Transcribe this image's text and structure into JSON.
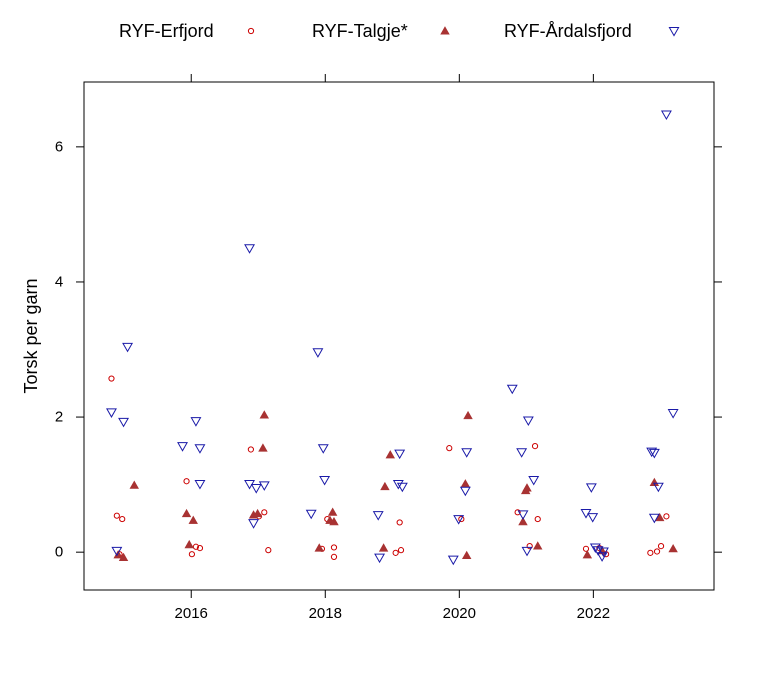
{
  "chart_data": {
    "type": "scatter",
    "title": "",
    "xlabel": "",
    "ylabel": "Torsk per garn",
    "xlim": [
      2014.4,
      2023.8
    ],
    "ylim": [
      -0.56,
      6.96
    ],
    "x_ticks": [
      2016,
      2018,
      2020,
      2022
    ],
    "y_ticks": [
      0,
      2,
      4,
      6
    ],
    "grid": false,
    "legend_position": "top",
    "series": [
      {
        "name": "RYF-Erfjord",
        "marker": "open-circle",
        "color": "#cc0000",
        "points": [
          {
            "x": 2014.81,
            "y": 2.57
          },
          {
            "x": 2014.89,
            "y": 0.54
          },
          {
            "x": 2014.97,
            "y": 0.49
          },
          {
            "x": 2014.93,
            "y": -0.03
          },
          {
            "x": 2015.93,
            "y": 1.05
          },
          {
            "x": 2016.01,
            "y": -0.03
          },
          {
            "x": 2016.07,
            "y": 0.08
          },
          {
            "x": 2016.13,
            "y": 0.06
          },
          {
            "x": 2016.89,
            "y": 1.52
          },
          {
            "x": 2017.01,
            "y": 0.53
          },
          {
            "x": 2017.09,
            "y": 0.59
          },
          {
            "x": 2017.15,
            "y": 0.03
          },
          {
            "x": 2017.95,
            "y": 0.05
          },
          {
            "x": 2018.03,
            "y": 0.49
          },
          {
            "x": 2018.13,
            "y": -0.07
          },
          {
            "x": 2018.13,
            "y": 0.07
          },
          {
            "x": 2019.11,
            "y": 0.44
          },
          {
            "x": 2019.05,
            "y": -0.01
          },
          {
            "x": 2019.13,
            "y": 0.03
          },
          {
            "x": 2019.85,
            "y": 1.54
          },
          {
            "x": 2020.03,
            "y": 0.49
          },
          {
            "x": 2020.87,
            "y": 0.59
          },
          {
            "x": 2021.05,
            "y": 0.09
          },
          {
            "x": 2021.13,
            "y": 1.57
          },
          {
            "x": 2021.17,
            "y": 0.49
          },
          {
            "x": 2021.89,
            "y": 0.05
          },
          {
            "x": 2022.09,
            "y": 0.06
          },
          {
            "x": 2022.19,
            "y": -0.03
          },
          {
            "x": 2022.85,
            "y": -0.01
          },
          {
            "x": 2022.95,
            "y": 0.01
          },
          {
            "x": 2023.09,
            "y": 0.53
          },
          {
            "x": 2023.01,
            "y": 0.09
          }
        ]
      },
      {
        "name": "RYF-Talgje*",
        "marker": "filled-triangle",
        "color": "#a83232",
        "points": [
          {
            "x": 2014.91,
            "y": -0.04
          },
          {
            "x": 2014.99,
            "y": -0.08
          },
          {
            "x": 2015.15,
            "y": 0.99
          },
          {
            "x": 2015.93,
            "y": 0.57
          },
          {
            "x": 2015.97,
            "y": 0.11
          },
          {
            "x": 2016.03,
            "y": 0.47
          },
          {
            "x": 2016.93,
            "y": 0.55
          },
          {
            "x": 2016.99,
            "y": 0.57
          },
          {
            "x": 2017.07,
            "y": 1.54
          },
          {
            "x": 2017.09,
            "y": 2.03
          },
          {
            "x": 2017.91,
            "y": 0.06
          },
          {
            "x": 2018.07,
            "y": 0.47
          },
          {
            "x": 2018.11,
            "y": 0.59
          },
          {
            "x": 2018.13,
            "y": 0.45
          },
          {
            "x": 2018.87,
            "y": 0.06
          },
          {
            "x": 2018.89,
            "y": 0.97
          },
          {
            "x": 2018.97,
            "y": 1.44
          },
          {
            "x": 2020.09,
            "y": 1.01
          },
          {
            "x": 2020.11,
            "y": -0.05
          },
          {
            "x": 2020.13,
            "y": 2.02
          },
          {
            "x": 2020.95,
            "y": 0.45
          },
          {
            "x": 2020.99,
            "y": 0.91
          },
          {
            "x": 2021.01,
            "y": 0.95
          },
          {
            "x": 2021.17,
            "y": 0.09
          },
          {
            "x": 2021.91,
            "y": -0.04
          },
          {
            "x": 2022.13,
            "y": 0.02
          },
          {
            "x": 2022.91,
            "y": 1.03
          },
          {
            "x": 2022.99,
            "y": 0.51
          },
          {
            "x": 2023.19,
            "y": 0.05
          }
        ]
      },
      {
        "name": "RYF-Årdalsfjord",
        "marker": "open-triangle-down",
        "color": "#1a1aa8",
        "points": [
          {
            "x": 2014.81,
            "y": 2.07
          },
          {
            "x": 2014.89,
            "y": 0.02
          },
          {
            "x": 2014.99,
            "y": 1.93
          },
          {
            "x": 2015.05,
            "y": 3.04
          },
          {
            "x": 2015.87,
            "y": 1.57
          },
          {
            "x": 2016.07,
            "y": 1.94
          },
          {
            "x": 2016.13,
            "y": 1.54
          },
          {
            "x": 2016.13,
            "y": 1.01
          },
          {
            "x": 2016.87,
            "y": 4.5
          },
          {
            "x": 2016.87,
            "y": 1.01
          },
          {
            "x": 2016.93,
            "y": 0.43
          },
          {
            "x": 2016.97,
            "y": 0.95
          },
          {
            "x": 2017.09,
            "y": 0.99
          },
          {
            "x": 2017.79,
            "y": 0.57
          },
          {
            "x": 2017.89,
            "y": 2.96
          },
          {
            "x": 2017.97,
            "y": 1.54
          },
          {
            "x": 2017.99,
            "y": 1.07
          },
          {
            "x": 2018.79,
            "y": 0.55
          },
          {
            "x": 2018.81,
            "y": -0.08
          },
          {
            "x": 2019.09,
            "y": 1.01
          },
          {
            "x": 2019.11,
            "y": 1.46
          },
          {
            "x": 2019.15,
            "y": 0.97
          },
          {
            "x": 2019.91,
            "y": -0.11
          },
          {
            "x": 2019.99,
            "y": 0.49
          },
          {
            "x": 2020.09,
            "y": 0.91
          },
          {
            "x": 2020.11,
            "y": 1.48
          },
          {
            "x": 2020.79,
            "y": 2.42
          },
          {
            "x": 2020.93,
            "y": 1.48
          },
          {
            "x": 2020.95,
            "y": 0.56
          },
          {
            "x": 2021.01,
            "y": 0.02
          },
          {
            "x": 2021.03,
            "y": 1.95
          },
          {
            "x": 2021.11,
            "y": 1.07
          },
          {
            "x": 2021.89,
            "y": 0.58
          },
          {
            "x": 2021.97,
            "y": 0.96
          },
          {
            "x": 2021.99,
            "y": 0.52
          },
          {
            "x": 2022.03,
            "y": 0.07
          },
          {
            "x": 2022.07,
            "y": 0.03
          },
          {
            "x": 2022.13,
            "y": -0.06
          },
          {
            "x": 2022.15,
            "y": 0.01
          },
          {
            "x": 2022.87,
            "y": 1.49
          },
          {
            "x": 2022.91,
            "y": 1.47
          },
          {
            "x": 2022.91,
            "y": 0.51
          },
          {
            "x": 2022.97,
            "y": 0.97
          },
          {
            "x": 2023.09,
            "y": 6.48
          },
          {
            "x": 2023.19,
            "y": 2.06
          }
        ]
      }
    ]
  }
}
